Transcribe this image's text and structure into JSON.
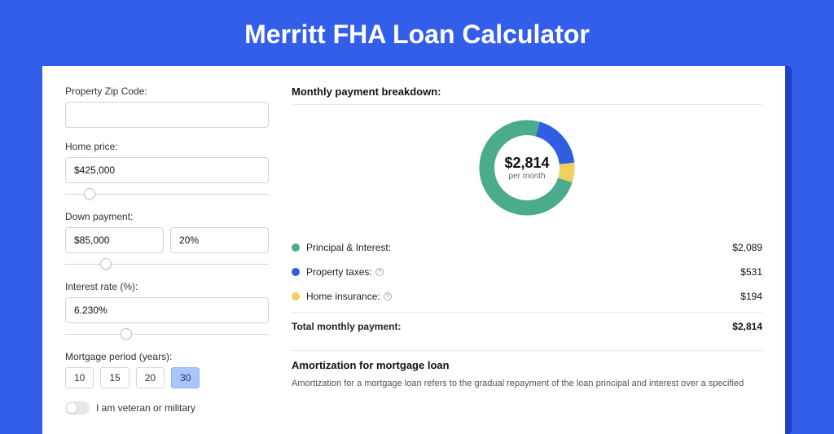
{
  "page": {
    "title": "Merritt FHA Loan Calculator",
    "background_color": "#335eea",
    "shadow_color": "#1f3fc7",
    "card_bg": "#ffffff"
  },
  "form": {
    "zip": {
      "label": "Property Zip Code:",
      "value": ""
    },
    "home_price": {
      "label": "Home price:",
      "value": "$425,000",
      "slider_pct": 12
    },
    "down_payment": {
      "label": "Down payment:",
      "value": "$85,000",
      "percent": "20%",
      "slider_pct": 20
    },
    "interest_rate": {
      "label": "Interest rate (%):",
      "value": "6.230%",
      "slider_pct": 30
    },
    "period": {
      "label": "Mortgage period (years):",
      "options": [
        "10",
        "15",
        "20",
        "30"
      ],
      "selected": "30"
    },
    "veteran": {
      "label": "I am veteran or military",
      "checked": false
    }
  },
  "breakdown": {
    "title": "Monthly payment breakdown:",
    "donut": {
      "type": "donut",
      "center_amount": "$2,814",
      "center_sub": "per month",
      "slices": [
        {
          "key": "principal_interest",
          "value": 2089,
          "color": "#4bab8d"
        },
        {
          "key": "property_taxes",
          "value": 531,
          "color": "#2f5ee0"
        },
        {
          "key": "home_insurance",
          "value": 194,
          "color": "#f0cf5e"
        }
      ],
      "ring_width": 18
    },
    "rows": [
      {
        "label": "Principal & Interest:",
        "color": "#4bab8d",
        "value": "$2,089",
        "info": false
      },
      {
        "label": "Property taxes:",
        "color": "#2f5ee0",
        "value": "$531",
        "info": true
      },
      {
        "label": "Home insurance:",
        "color": "#f0cf5e",
        "value": "$194",
        "info": true
      }
    ],
    "total": {
      "label": "Total monthly payment:",
      "value": "$2,814"
    }
  },
  "amortization": {
    "title": "Amortization for mortgage loan",
    "text": "Amortization for a mortgage loan refers to the gradual repayment of the loan principal and interest over a specified"
  }
}
